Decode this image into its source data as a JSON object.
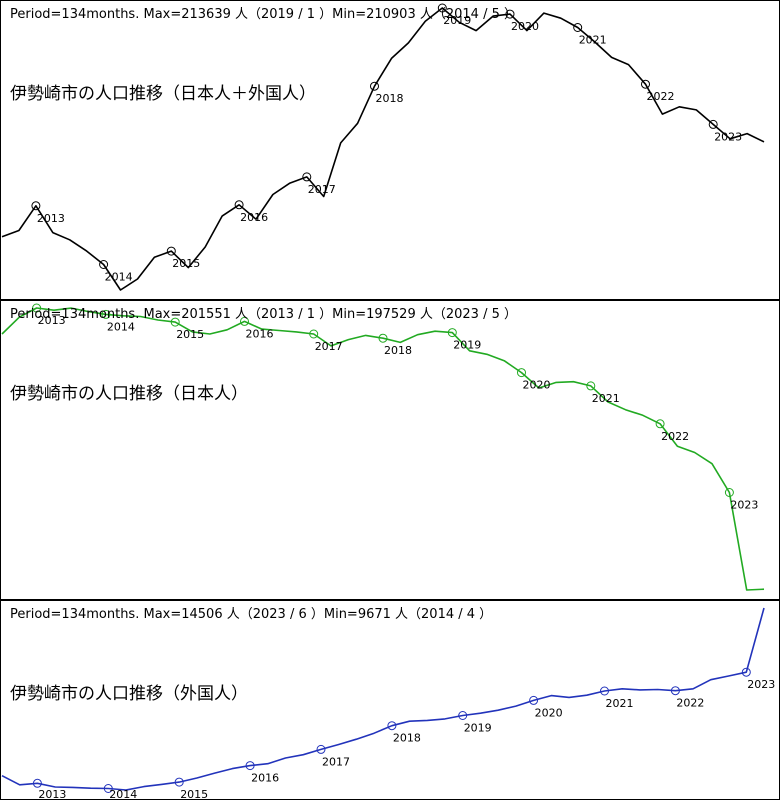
{
  "chart_data": [
    {
      "type": "line",
      "header": "Period=134months. Max=213639 人（2019 / 1 ）Min=210903 人（2014 / 5 ）",
      "title": "伊勢崎市の人口推移（日本人＋外国人）",
      "color": "#000000",
      "ylim": [
        210903,
        213639
      ],
      "x": [
        "2012/8",
        "2012/11",
        "2013/1",
        "2013/4",
        "2013/7",
        "2013/10",
        "2014/1",
        "2014/5",
        "2014/8",
        "2014/11",
        "2015/1",
        "2015/4",
        "2015/7",
        "2015/10",
        "2016/1",
        "2016/4",
        "2016/7",
        "2016/10",
        "2017/1",
        "2017/4",
        "2017/7",
        "2017/10",
        "2018/1",
        "2018/4",
        "2018/7",
        "2018/10",
        "2019/1",
        "2019/4",
        "2019/7",
        "2019/10",
        "2020/1",
        "2020/4",
        "2020/7",
        "2020/10",
        "2021/1",
        "2021/4",
        "2021/7",
        "2021/10",
        "2022/1",
        "2022/4",
        "2022/7",
        "2022/10",
        "2023/1",
        "2023/4",
        "2023/6",
        "2023/9"
      ],
      "values": [
        211420,
        211480,
        211720,
        211460,
        211390,
        211280,
        211150,
        210903,
        211010,
        211220,
        211280,
        211120,
        211320,
        211620,
        211730,
        211590,
        211830,
        211940,
        212000,
        211810,
        212330,
        212520,
        212880,
        213150,
        213300,
        213510,
        213639,
        213500,
        213420,
        213560,
        213580,
        213420,
        213590,
        213540,
        213450,
        213310,
        213160,
        213090,
        212900,
        212610,
        212680,
        212650,
        212510,
        212370,
        212420,
        212340
      ],
      "markers": [
        {
          "label": "2013",
          "index": 2
        },
        {
          "label": "2014",
          "index": 6
        },
        {
          "label": "2015",
          "index": 10
        },
        {
          "label": "2016",
          "index": 14
        },
        {
          "label": "2017",
          "index": 18
        },
        {
          "label": "2018",
          "index": 22
        },
        {
          "label": "2019",
          "index": 26
        },
        {
          "label": "2020",
          "index": 30
        },
        {
          "label": "2021",
          "index": 34
        },
        {
          "label": "2022",
          "index": 38
        },
        {
          "label": "2023",
          "index": 42
        }
      ]
    },
    {
      "type": "line",
      "header": "Period=134months. Max=201551 人（2013 / 1 ）Min=197529 人（2023 / 5 ）",
      "title": "伊勢崎市の人口推移（日本人）",
      "color": "#22aa22",
      "ylim": [
        197529,
        201551
      ],
      "x": [
        "2012/8",
        "2012/11",
        "2013/1",
        "2013/4",
        "2013/7",
        "2013/10",
        "2014/1",
        "2014/4",
        "2014/7",
        "2014/10",
        "2015/1",
        "2015/4",
        "2015/7",
        "2015/10",
        "2016/1",
        "2016/4",
        "2016/7",
        "2016/10",
        "2017/1",
        "2017/4",
        "2017/7",
        "2017/10",
        "2018/1",
        "2018/4",
        "2018/7",
        "2018/10",
        "2019/1",
        "2019/4",
        "2019/7",
        "2019/10",
        "2020/1",
        "2020/4",
        "2020/7",
        "2020/10",
        "2021/1",
        "2021/4",
        "2021/7",
        "2021/10",
        "2022/1",
        "2022/4",
        "2022/7",
        "2022/10",
        "2023/1",
        "2023/5",
        "2023/9"
      ],
      "values": [
        201180,
        201420,
        201551,
        201520,
        201550,
        201500,
        201460,
        201440,
        201430,
        201380,
        201350,
        201210,
        201180,
        201240,
        201360,
        201250,
        201230,
        201210,
        201180,
        201010,
        201100,
        201160,
        201120,
        201060,
        201170,
        201220,
        201200,
        200940,
        200890,
        200800,
        200630,
        200410,
        200490,
        200500,
        200440,
        200210,
        200100,
        200020,
        199900,
        199580,
        199490,
        199330,
        198920,
        197529,
        197540
      ],
      "markers": [
        {
          "label": "2013",
          "index": 2
        },
        {
          "label": "2014",
          "index": 6
        },
        {
          "label": "2015",
          "index": 10
        },
        {
          "label": "2016",
          "index": 14
        },
        {
          "label": "2017",
          "index": 18
        },
        {
          "label": "2018",
          "index": 22
        },
        {
          "label": "2019",
          "index": 26
        },
        {
          "label": "2020",
          "index": 30
        },
        {
          "label": "2021",
          "index": 34
        },
        {
          "label": "2022",
          "index": 38
        },
        {
          "label": "2023",
          "index": 42
        }
      ]
    },
    {
      "type": "line",
      "header": "Period=134months. Max=14506 人（2023 / 6 ）Min=9671 人（2014 / 4 ）",
      "title": "伊勢崎市の人口推移（外国人）",
      "color": "#2233bb",
      "ylim": [
        9671,
        14506
      ],
      "x": [
        "2012/8",
        "2012/11",
        "2013/1",
        "2013/4",
        "2013/7",
        "2013/10",
        "2014/1",
        "2014/4",
        "2014/7",
        "2014/10",
        "2015/1",
        "2015/4",
        "2015/7",
        "2015/10",
        "2016/1",
        "2016/4",
        "2016/7",
        "2016/10",
        "2017/1",
        "2017/4",
        "2017/7",
        "2017/10",
        "2018/1",
        "2018/4",
        "2018/7",
        "2018/10",
        "2019/1",
        "2019/4",
        "2019/7",
        "2019/10",
        "2020/1",
        "2020/4",
        "2020/7",
        "2020/10",
        "2021/1",
        "2021/4",
        "2021/7",
        "2021/10",
        "2022/1",
        "2022/4",
        "2022/7",
        "2022/10",
        "2023/1",
        "2023/6"
      ],
      "values": [
        10050,
        9810,
        9850,
        9750,
        9740,
        9720,
        9710,
        9671,
        9760,
        9820,
        9880,
        9990,
        10120,
        10240,
        10320,
        10370,
        10520,
        10610,
        10750,
        10880,
        11020,
        11180,
        11380,
        11500,
        11520,
        11560,
        11650,
        11710,
        11790,
        11900,
        12050,
        12180,
        12130,
        12190,
        12300,
        12360,
        12330,
        12340,
        12310,
        12360,
        12600,
        12700,
        12800,
        14506
      ],
      "markers": [
        {
          "label": "2013",
          "index": 2
        },
        {
          "label": "2014",
          "index": 6
        },
        {
          "label": "2015",
          "index": 10
        },
        {
          "label": "2016",
          "index": 14
        },
        {
          "label": "2017",
          "index": 18
        },
        {
          "label": "2018",
          "index": 22
        },
        {
          "label": "2019",
          "index": 26
        },
        {
          "label": "2020",
          "index": 30
        },
        {
          "label": "2021",
          "index": 34
        },
        {
          "label": "2022",
          "index": 38
        },
        {
          "label": "2023",
          "index": 42
        }
      ]
    }
  ]
}
